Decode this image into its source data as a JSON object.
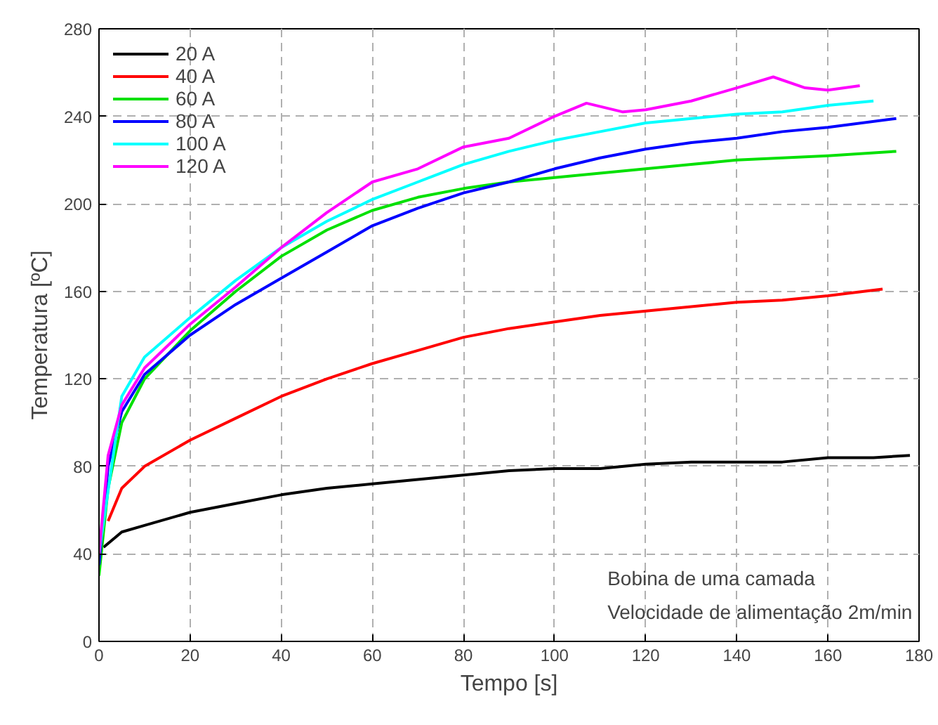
{
  "chart_data": {
    "type": "line",
    "xlabel": "Tempo [s]",
    "ylabel": "Temperatura [ºC]",
    "xlim": [
      0,
      180
    ],
    "ylim": [
      0,
      280
    ],
    "xticks": [
      0,
      20,
      40,
      60,
      80,
      100,
      120,
      140,
      160,
      180
    ],
    "yticks": [
      0,
      40,
      80,
      120,
      160,
      200,
      240,
      280
    ],
    "grid": true,
    "legend": "top left",
    "line_style": "solid",
    "marker": "none",
    "annotations": [
      "Bobina de uma camada",
      "Velocidade de alimentação 2m/min"
    ],
    "series": [
      {
        "name": "20 A",
        "color": "#000000",
        "x": [
          1,
          5,
          10,
          20,
          30,
          40,
          50,
          60,
          70,
          80,
          90,
          100,
          110,
          120,
          130,
          140,
          150,
          160,
          170,
          178
        ],
        "values": [
          43,
          50,
          53,
          59,
          63,
          67,
          70,
          72,
          74,
          76,
          78,
          79,
          79,
          81,
          82,
          82,
          82,
          84,
          84,
          85
        ]
      },
      {
        "name": "40 A",
        "color": "#ff0000",
        "x": [
          2,
          5,
          10,
          20,
          30,
          40,
          50,
          60,
          70,
          80,
          90,
          100,
          110,
          120,
          130,
          140,
          150,
          160,
          172
        ],
        "values": [
          55,
          70,
          80,
          92,
          102,
          112,
          120,
          127,
          133,
          139,
          143,
          146,
          149,
          151,
          153,
          155,
          156,
          158,
          161
        ]
      },
      {
        "name": "60 A",
        "color": "#00e000",
        "x": [
          0,
          2,
          5,
          10,
          20,
          30,
          40,
          50,
          60,
          70,
          80,
          90,
          100,
          110,
          120,
          130,
          140,
          150,
          160,
          175
        ],
        "values": [
          30,
          70,
          100,
          120,
          142,
          160,
          176,
          188,
          197,
          203,
          207,
          210,
          212,
          214,
          216,
          218,
          220,
          221,
          222,
          224
        ]
      },
      {
        "name": "80 A",
        "color": "#0000ff",
        "x": [
          0,
          2,
          5,
          10,
          20,
          30,
          40,
          50,
          60,
          70,
          80,
          90,
          100,
          110,
          120,
          130,
          140,
          150,
          160,
          175
        ],
        "values": [
          35,
          80,
          105,
          122,
          140,
          154,
          166,
          178,
          190,
          198,
          205,
          210,
          216,
          221,
          225,
          228,
          230,
          233,
          235,
          239
        ]
      },
      {
        "name": "100 A",
        "color": "#00ffff",
        "x": [
          0,
          5,
          10,
          20,
          30,
          40,
          50,
          60,
          70,
          80,
          90,
          100,
          110,
          120,
          130,
          140,
          150,
          160,
          170
        ],
        "values": [
          40,
          112,
          130,
          148,
          165,
          180,
          192,
          202,
          210,
          218,
          224,
          229,
          233,
          237,
          239,
          241,
          242,
          245,
          247
        ]
      },
      {
        "name": "120 A",
        "color": "#ff00ff",
        "x": [
          0,
          2,
          5,
          10,
          20,
          30,
          40,
          50,
          60,
          70,
          80,
          90,
          100,
          107,
          115,
          120,
          130,
          140,
          148,
          155,
          160,
          167
        ],
        "values": [
          40,
          85,
          108,
          125,
          145,
          162,
          180,
          196,
          210,
          216,
          226,
          230,
          240,
          246,
          242,
          243,
          247,
          253,
          258,
          253,
          252,
          254
        ]
      }
    ]
  }
}
